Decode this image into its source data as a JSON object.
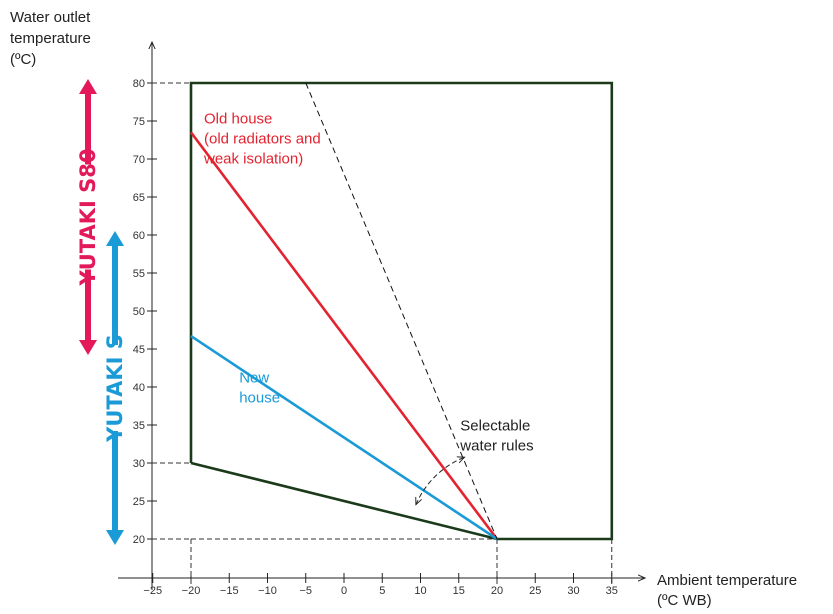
{
  "chart_data": {
    "type": "line",
    "title": "",
    "xlabel_lines": [
      "Ambient temperature",
      "(ºC WB)"
    ],
    "ylabel_lines": [
      "Water outlet",
      "temperature",
      "(ºC)"
    ],
    "x_ticks": [
      -25,
      -20,
      -15,
      -10,
      -5,
      0,
      5,
      10,
      15,
      20,
      25,
      30,
      35
    ],
    "x_tick_labels": [
      "−25",
      "−20",
      "−15",
      "−10",
      "−5",
      "0",
      "5",
      "10",
      "15",
      "20",
      "25",
      "30",
      "35"
    ],
    "y_ticks": [
      20,
      25,
      30,
      35,
      40,
      45,
      50,
      55,
      60,
      65,
      70,
      75,
      80
    ],
    "y_tick_labels": [
      "20",
      "25",
      "30",
      "35",
      "40",
      "45",
      "50",
      "55",
      "60",
      "65",
      "70",
      "75",
      "80"
    ],
    "xlim": [
      -27,
      40
    ],
    "ylim": [
      16,
      83
    ],
    "grid": false,
    "series": [
      {
        "role": "envelope",
        "color": "#1a3a1a",
        "points": [
          [
            -20,
            30
          ],
          [
            -20,
            80
          ],
          [
            35,
            80
          ],
          [
            35,
            20
          ],
          [
            20,
            20
          ],
          [
            -20,
            30
          ]
        ]
      },
      {
        "role": "old-house",
        "color": "#e3232f",
        "points": [
          [
            -20,
            73.5
          ],
          [
            20,
            20
          ]
        ]
      },
      {
        "role": "new-house",
        "color": "#1a9ad6",
        "points": [
          [
            -20,
            46.7
          ],
          [
            20,
            20
          ]
        ]
      },
      {
        "role": "steepest-rule",
        "color": "#111111",
        "dashed": true,
        "points": [
          [
            -5,
            80
          ],
          [
            20,
            20
          ]
        ]
      }
    ],
    "guides": [
      {
        "x": -20,
        "y": 80
      },
      {
        "x": -20,
        "y": 30
      },
      {
        "x": -20,
        "y": 20
      },
      {
        "x": 20,
        "y": 20
      },
      {
        "x": 35,
        "y": 20
      }
    ],
    "annotations": [
      {
        "lines": [
          "Old house",
          "(old radiators and",
          "weak isolation)"
        ],
        "color": "#e3232f",
        "x": -18.3,
        "y": 74.7
      },
      {
        "lines": [
          "New house"
        ],
        "line2": "house",
        "color": "#1a9ad6",
        "x": -13.7,
        "y": 40.6
      },
      {
        "lines": [
          "Selectable",
          "water rules"
        ],
        "color": "#222222",
        "x": 15.2,
        "y": 34.3
      }
    ],
    "ranges": [
      {
        "name": "YUTAKI S80",
        "color": "#e3195a",
        "y_from": 45,
        "y_to": 80
      },
      {
        "name": "YUTAKI S",
        "color": "#1a9ad6",
        "y_from": 20,
        "y_to": 60
      }
    ]
  }
}
